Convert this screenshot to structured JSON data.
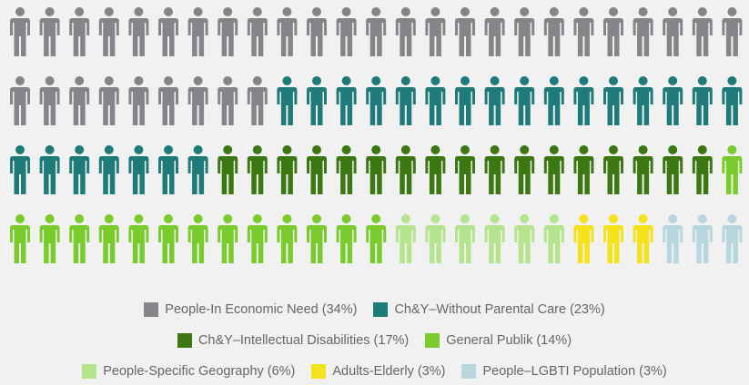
{
  "chart_data": {
    "type": "pictogram",
    "title": "",
    "total_icons": 100,
    "icons_per_row": 25,
    "grid": false,
    "legend_position": "bottom",
    "series": [
      {
        "name": "People-In Economic Need",
        "label": "(34%)",
        "value": 34,
        "color": "#858589"
      },
      {
        "name": "Ch&Y–Without Parental Care",
        "label": "(23%)",
        "value": 23,
        "color": "#1e7b7a"
      },
      {
        "name": "Ch&Y–Intellectual Disabilities",
        "label": "(17%)",
        "value": 17,
        "color": "#3c7812"
      },
      {
        "name": "General Publik",
        "label": "(14%)",
        "value": 14,
        "color": "#79cc2c"
      },
      {
        "name": "People-Specific Geography",
        "label": "(6%)",
        "value": 6,
        "color": "#b4e58e"
      },
      {
        "name": "Adults-Elderly",
        "label": "(3%)",
        "value": 3,
        "color": "#f4e21a"
      },
      {
        "name": "People–LGBTI Population",
        "label": "(3%)",
        "value": 3,
        "color": "#b8d6dd"
      }
    ]
  }
}
